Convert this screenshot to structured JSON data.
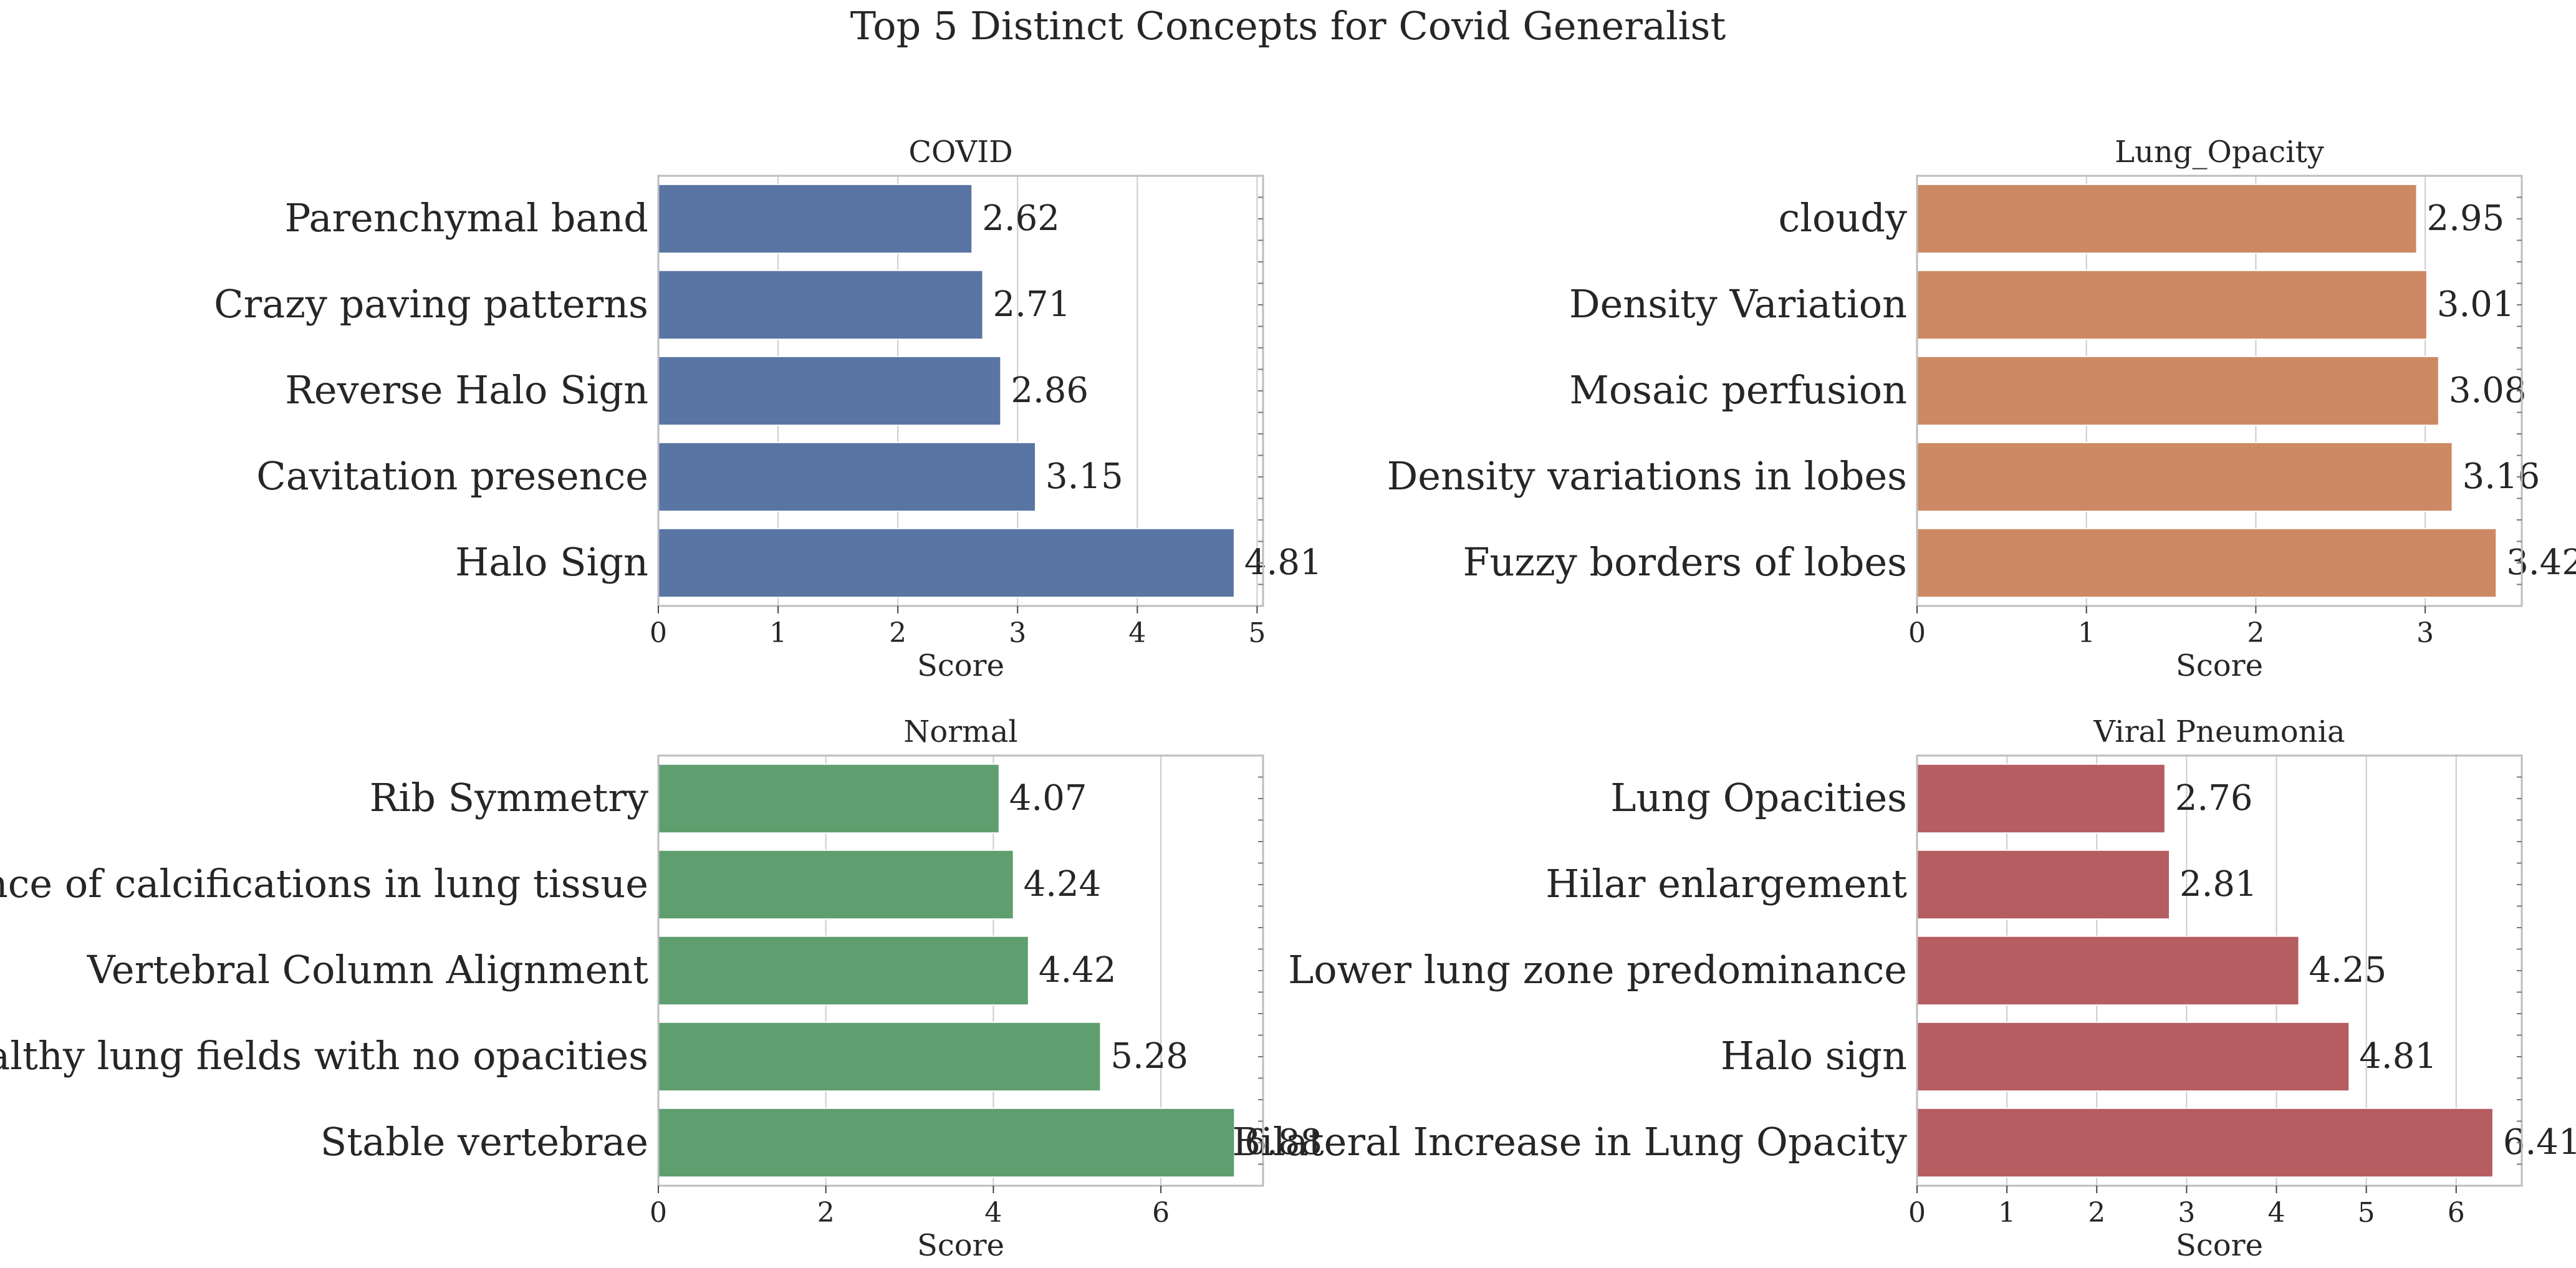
{
  "figure_title": "Top 5 Distinct Concepts for Covid Generalist",
  "chart_data": [
    {
      "type": "bar",
      "orientation": "horizontal",
      "title": "COVID",
      "xlabel": "Score",
      "color": "#5975a4",
      "categories": [
        "Parenchymal band",
        "Crazy paving patterns",
        "Reverse Halo Sign",
        "Cavitation presence",
        "Halo Sign"
      ],
      "values": [
        2.62,
        2.71,
        2.86,
        3.15,
        4.81
      ],
      "value_labels": [
        "2.62",
        "2.71",
        "2.86",
        "3.15",
        "4.81"
      ],
      "xticks": [
        0,
        1,
        2,
        3,
        4,
        5
      ],
      "xlim": [
        0,
        5.05
      ],
      "grid": "vertical"
    },
    {
      "type": "bar",
      "orientation": "horizontal",
      "title": "Lung_Opacity",
      "xlabel": "Score",
      "color": "#cc8963",
      "categories": [
        "cloudy",
        "Density Variation",
        "Mosaic perfusion",
        "Density variations in lobes",
        "Fuzzy borders of lobes"
      ],
      "values": [
        2.95,
        3.01,
        3.08,
        3.16,
        3.42
      ],
      "value_labels": [
        "2.95",
        "3.01",
        "3.08",
        "3.16",
        "3.42"
      ],
      "xticks": [
        0,
        1,
        2,
        3
      ],
      "xlim": [
        0,
        3.57
      ],
      "grid": "vertical"
    },
    {
      "type": "bar",
      "orientation": "horizontal",
      "title": "Normal",
      "xlabel": "Score",
      "color": "#5f9e6e",
      "categories": [
        "Rib Symmetry",
        "Absence of calcifications in lung tissue",
        "Vertebral Column Alignment",
        "Healthy lung fields with no opacities",
        "Stable vertebrae"
      ],
      "values": [
        4.07,
        4.24,
        4.42,
        5.28,
        6.88
      ],
      "value_labels": [
        "4.07",
        "4.24",
        "4.42",
        "5.28",
        "6.88"
      ],
      "xticks": [
        0,
        2,
        4,
        6
      ],
      "xlim": [
        0,
        7.22
      ],
      "grid": "vertical"
    },
    {
      "type": "bar",
      "orientation": "horizontal",
      "title": "Viral Pneumonia",
      "xlabel": "Score",
      "color": "#b55d60",
      "categories": [
        "Lung Opacities",
        "Hilar enlargement",
        "Lower lung zone predominance",
        "Halo sign",
        "Bilateral Increase in Lung Opacity"
      ],
      "values": [
        2.76,
        2.81,
        4.25,
        4.81,
        6.41
      ],
      "value_labels": [
        "2.76",
        "2.81",
        "4.25",
        "4.81",
        "6.41"
      ],
      "xticks": [
        0,
        1,
        2,
        3,
        4,
        5,
        6
      ],
      "xlim": [
        0,
        6.73
      ],
      "grid": "vertical"
    }
  ]
}
